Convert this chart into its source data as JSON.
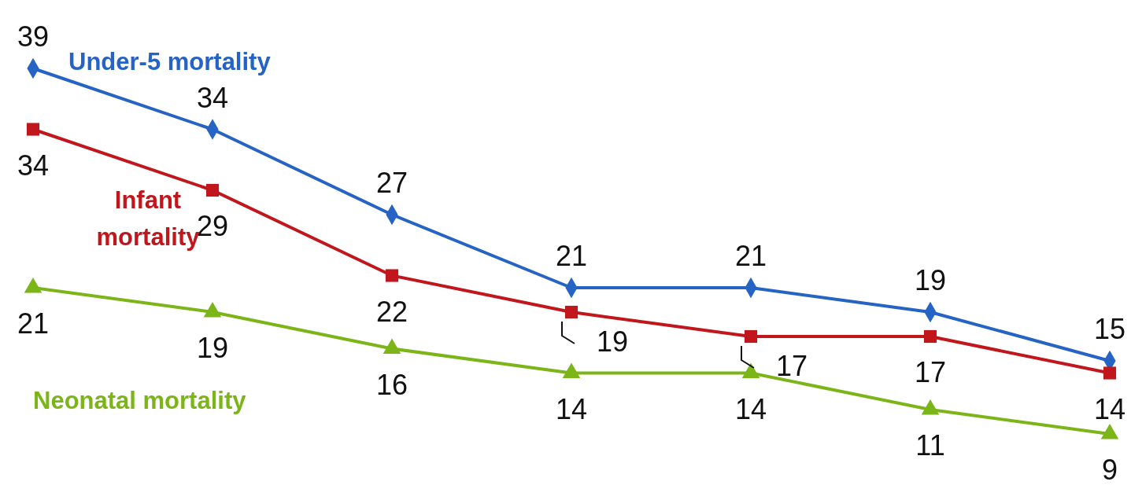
{
  "chart_data": {
    "type": "line",
    "categories": [
      null,
      null,
      null,
      null,
      null,
      null,
      null
    ],
    "series": [
      {
        "name": "Under-5 mortality",
        "color": "#2563c4",
        "marker": "diamond",
        "values": [
          39,
          34,
          27,
          21,
          21,
          19,
          15
        ]
      },
      {
        "name": "Infant mortality",
        "color": "#c0161c",
        "marker": "square",
        "values": [
          34,
          29,
          22,
          19,
          17,
          17,
          14
        ]
      },
      {
        "name": "Neonatal mortality",
        "color": "#7cb518",
        "marker": "triangle",
        "values": [
          21,
          19,
          16,
          14,
          14,
          11,
          9
        ]
      }
    ],
    "data_labels": true
  }
}
